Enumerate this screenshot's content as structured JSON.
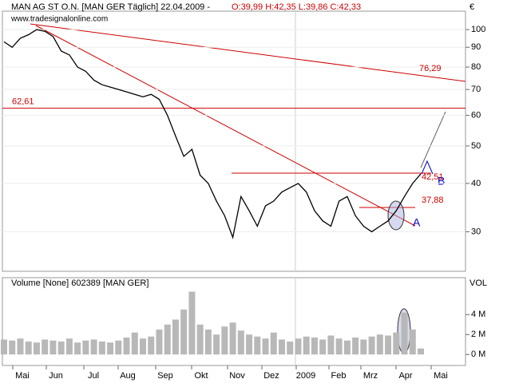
{
  "chart_data": [
    {
      "type": "line",
      "title": "MAN AG ST O.N. [MAN GER  Täglich] 22.04.2009 -",
      "subtitle": "O:39,99 H:42,35 L:39,86 C:42,33",
      "watermark": "www.tradesignalonline.com",
      "y_unit": "€",
      "log_scale": true,
      "x_labels": [
        "Mai",
        "Jun",
        "Jul",
        "Aug",
        "Sep",
        "Okt",
        "Nov",
        "Dez",
        "2009",
        "Feb",
        "Mrz",
        "Apr",
        "Mai"
      ],
      "ylim": [
        23.7,
        111.6
      ],
      "yticks": [
        30,
        40,
        50,
        60,
        70,
        80,
        90,
        100
      ],
      "series": [
        {
          "color": "#000000",
          "values": [
            93,
            90,
            95,
            97,
            100,
            99,
            96,
            88,
            86,
            80,
            78,
            74,
            72,
            71,
            70,
            69,
            68,
            67,
            68,
            66,
            60,
            53,
            47,
            49,
            42,
            40,
            36,
            33,
            29,
            37,
            34,
            31,
            35,
            36,
            38,
            39,
            40,
            38,
            34,
            32,
            31,
            36,
            37,
            33,
            31,
            30,
            31,
            32,
            34,
            37,
            40,
            42.33
          ]
        }
      ],
      "annotations": [
        {
          "value": 62.61,
          "label": "62,61"
        },
        {
          "value": 76.29,
          "label": "76,29"
        },
        {
          "value": 42.51,
          "label": "42,51"
        },
        {
          "value": 37.88,
          "label": "37,88"
        }
      ],
      "wave_labels": [
        "A",
        "B"
      ]
    },
    {
      "type": "bar",
      "title": "Volume [None] 602389 [MAN GER]",
      "y_unit": "VOL",
      "color": "#b8b8b8",
      "ylim": [
        -1100000,
        7700000
      ],
      "yticks": [
        {
          "value": 0,
          "label": "0 M"
        },
        {
          "value": 2000000,
          "label": "2 M"
        },
        {
          "value": 4000000,
          "label": "4 M"
        }
      ],
      "values": [
        1500000,
        1400000,
        1600000,
        1300000,
        1200000,
        1500000,
        1400000,
        1300000,
        1600000,
        1200000,
        1400000,
        1500000,
        1300000,
        1200000,
        1400000,
        1700000,
        2200000,
        1600000,
        1800000,
        2500000,
        3000000,
        3500000,
        4500000,
        6300000,
        3000000,
        2500000,
        2000000,
        2800000,
        3200000,
        2400000,
        2000000,
        1800000,
        1600000,
        2200000,
        1500000,
        1300000,
        1600000,
        1800000,
        1700000,
        1500000,
        1900000,
        1600000,
        1400000,
        1700000,
        1500000,
        1800000,
        2000000,
        1900000,
        2200000,
        4200000,
        2500000,
        602389
      ]
    }
  ]
}
